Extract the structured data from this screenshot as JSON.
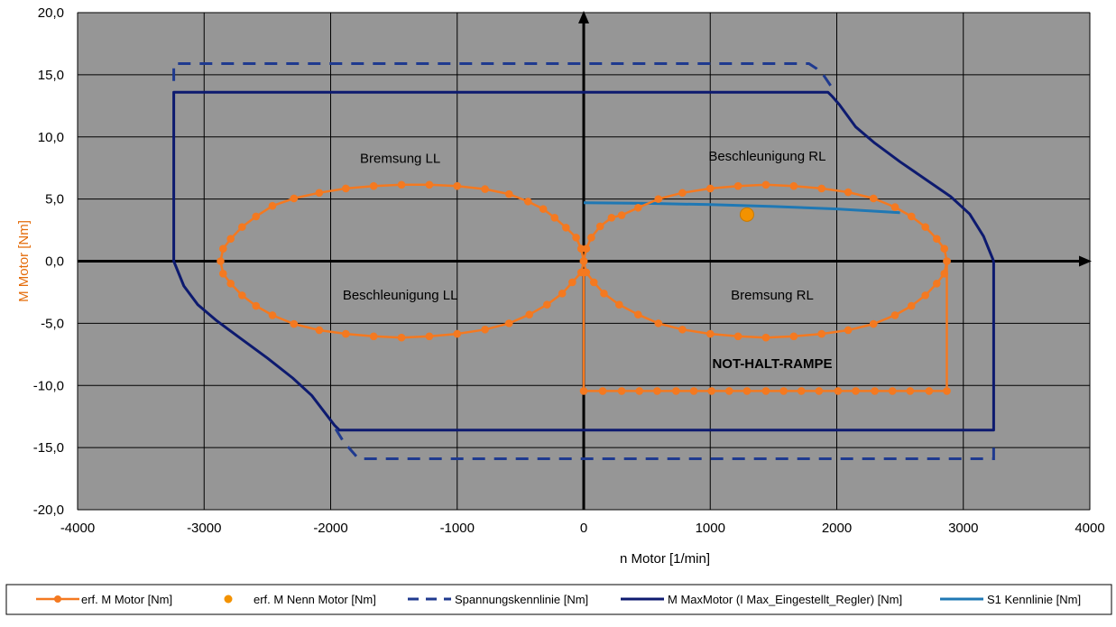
{
  "chart_data": {
    "type": "scatter",
    "xlabel": "n Motor  [1/min]",
    "ylabel": "M Motor  [Nm]",
    "xlim": [
      -4000,
      4000
    ],
    "ylim": [
      -20,
      20
    ],
    "x_ticks": [
      "-4000",
      "-3000",
      "-2000",
      "-1000",
      "0",
      "1000",
      "2000",
      "3000",
      "4000"
    ],
    "y_ticks": [
      "20,0",
      "15,0",
      "10,0",
      "5,0",
      "0,0",
      "-5,0",
      "-10,0",
      "-15,0",
      "-20,0"
    ],
    "grid": true,
    "plot_background": "#969696",
    "legend_position": "bottom",
    "annotations": [
      {
        "text": "Bremsung LL",
        "x": -1450,
        "y": 7.9
      },
      {
        "text": "Beschleunigung RL",
        "x": 1450,
        "y": 8.1
      },
      {
        "text": "Beschleunigung LL",
        "x": -1450,
        "y": -3.1
      },
      {
        "text": "Bremsung RL",
        "x": 1490,
        "y": -3.1
      },
      {
        "text": "NOT-HALT-RAMPE",
        "x": 1490,
        "y": -8.6,
        "bold": true
      }
    ],
    "series": [
      {
        "name": "erf. M Motor [Nm]",
        "color": "#F47920",
        "style": "line-markers",
        "segments": [
          [
            [
              0,
              0
            ],
            [
              20,
              1.0
            ],
            [
              60,
              1.9
            ],
            [
              130,
              2.8
            ],
            [
              220,
              3.5
            ],
            [
              300,
              3.7
            ],
            [
              430,
              4.3
            ],
            [
              590,
              5.0
            ],
            [
              780,
              5.5
            ],
            [
              1000,
              5.85
            ],
            [
              1220,
              6.05
            ],
            [
              1440,
              6.15
            ],
            [
              1660,
              6.05
            ],
            [
              1880,
              5.85
            ],
            [
              2090,
              5.55
            ],
            [
              2290,
              5.05
            ],
            [
              2460,
              4.35
            ],
            [
              2590,
              3.6
            ],
            [
              2700,
              2.75
            ],
            [
              2790,
              1.8
            ],
            [
              2850,
              1.0
            ],
            [
              2870,
              0
            ],
            [
              2850,
              -1.0
            ],
            [
              2790,
              -1.8
            ],
            [
              2700,
              -2.75
            ],
            [
              2590,
              -3.6
            ],
            [
              2460,
              -4.35
            ],
            [
              2290,
              -5.05
            ],
            [
              2090,
              -5.55
            ],
            [
              1880,
              -5.85
            ],
            [
              1660,
              -6.05
            ],
            [
              1440,
              -6.15
            ],
            [
              1220,
              -6.05
            ],
            [
              1000,
              -5.85
            ],
            [
              780,
              -5.5
            ],
            [
              590,
              -5.0
            ],
            [
              430,
              -4.3
            ],
            [
              280,
              -3.5
            ],
            [
              160,
              -2.6
            ],
            [
              80,
              -1.7
            ],
            [
              20,
              -0.9
            ],
            [
              0,
              0
            ]
          ],
          [
            [
              0,
              0
            ],
            [
              -20,
              1.0
            ],
            [
              -60,
              1.9
            ],
            [
              -140,
              2.7
            ],
            [
              -230,
              3.5
            ],
            [
              -320,
              4.2
            ],
            [
              -440,
              4.8
            ],
            [
              -590,
              5.4
            ],
            [
              -780,
              5.8
            ],
            [
              -1000,
              6.05
            ],
            [
              -1220,
              6.15
            ],
            [
              -1440,
              6.15
            ],
            [
              -1660,
              6.05
            ],
            [
              -1880,
              5.85
            ],
            [
              -2090,
              5.5
            ],
            [
              -2290,
              5.05
            ],
            [
              -2460,
              4.45
            ],
            [
              -2590,
              3.6
            ],
            [
              -2700,
              2.75
            ],
            [
              -2790,
              1.8
            ],
            [
              -2850,
              1.0
            ],
            [
              -2870,
              0
            ],
            [
              -2850,
              -1.0
            ],
            [
              -2790,
              -1.8
            ],
            [
              -2700,
              -2.75
            ],
            [
              -2590,
              -3.6
            ],
            [
              -2460,
              -4.35
            ],
            [
              -2290,
              -5.05
            ],
            [
              -2090,
              -5.55
            ],
            [
              -1880,
              -5.85
            ],
            [
              -1660,
              -6.05
            ],
            [
              -1440,
              -6.15
            ],
            [
              -1220,
              -6.05
            ],
            [
              -1000,
              -5.85
            ],
            [
              -780,
              -5.5
            ],
            [
              -590,
              -5.0
            ],
            [
              -430,
              -4.3
            ],
            [
              -290,
              -3.5
            ],
            [
              -170,
              -2.6
            ],
            [
              -90,
              -1.7
            ],
            [
              -20,
              -0.9
            ],
            [
              0,
              0
            ]
          ],
          [
            [
              0,
              -0.9
            ],
            [
              0,
              -10.45
            ],
            [
              150,
              -10.45
            ],
            [
              300,
              -10.45
            ],
            [
              440,
              -10.45
            ],
            [
              580,
              -10.45
            ],
            [
              730,
              -10.45
            ],
            [
              870,
              -10.45
            ],
            [
              1010,
              -10.45
            ],
            [
              1150,
              -10.45
            ],
            [
              1290,
              -10.45
            ],
            [
              1440,
              -10.45
            ],
            [
              1580,
              -10.45
            ],
            [
              1720,
              -10.45
            ],
            [
              1860,
              -10.45
            ],
            [
              2010,
              -10.45
            ],
            [
              2150,
              -10.45
            ],
            [
              2300,
              -10.45
            ],
            [
              2440,
              -10.45
            ],
            [
              2580,
              -10.45
            ],
            [
              2730,
              -10.45
            ],
            [
              2870,
              -10.45
            ],
            [
              2870,
              0
            ]
          ]
        ]
      },
      {
        "name": "erf. M Nenn Motor [Nm]",
        "color": "#F39200",
        "style": "marker",
        "points": [
          [
            1290,
            3.75
          ]
        ]
      },
      {
        "name": "Spannungskennlinie [Nm]",
        "color": "#1F3A8F",
        "style": "dashed",
        "points": [
          [
            -3240,
            14.5
          ],
          [
            -3240,
            15.9
          ],
          [
            1780,
            15.9
          ],
          [
            1840,
            15.5
          ],
          [
            1900,
            14.9
          ],
          [
            1960,
            14.0
          ]
        ],
        "points_2": [
          [
            -1960,
            -13.5
          ],
          [
            -1900,
            -14.5
          ],
          [
            -1840,
            -15.2
          ],
          [
            -1780,
            -15.9
          ],
          [
            3240,
            -15.9
          ],
          [
            3240,
            -14.5
          ]
        ]
      },
      {
        "name": "M MaxMotor (I Max_Eingestellt_Regler) [Nm]",
        "color": "#0D1A6F",
        "style": "solid",
        "points": [
          [
            3240,
            0
          ],
          [
            3160,
            2.0
          ],
          [
            3050,
            3.8
          ],
          [
            2900,
            5.2
          ],
          [
            2700,
            6.6
          ],
          [
            2500,
            8.0
          ],
          [
            2300,
            9.5
          ],
          [
            2150,
            10.8
          ],
          [
            2020,
            12.6
          ],
          [
            1960,
            13.3
          ],
          [
            1930,
            13.6
          ],
          [
            -3240,
            13.6
          ],
          [
            -3240,
            0
          ],
          [
            -3160,
            -2.0
          ],
          [
            -3050,
            -3.5
          ],
          [
            -2900,
            -4.8
          ],
          [
            -2700,
            -6.3
          ],
          [
            -2500,
            -7.8
          ],
          [
            -2300,
            -9.4
          ],
          [
            -2150,
            -10.8
          ],
          [
            -2030,
            -12.4
          ],
          [
            -1970,
            -13.2
          ],
          [
            -1930,
            -13.6
          ],
          [
            3240,
            -13.6
          ],
          [
            3240,
            0
          ]
        ]
      },
      {
        "name": "S1 Kennlinie [Nm]",
        "color": "#1F78B4",
        "style": "solid",
        "points": [
          [
            0,
            4.7
          ],
          [
            500,
            4.65
          ],
          [
            1000,
            4.55
          ],
          [
            1500,
            4.4
          ],
          [
            2000,
            4.2
          ],
          [
            2500,
            3.9
          ]
        ]
      }
    ]
  }
}
